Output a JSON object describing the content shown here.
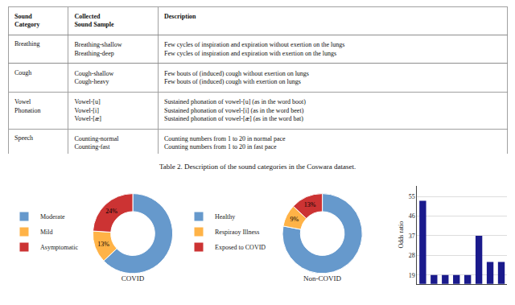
{
  "chart_data": [
    {
      "type": "table",
      "title": "Table 2. Description of the sound categories in the Coswara dataset.",
      "columns": [
        "Sound\nCategory",
        "Collected\nSound Sample",
        "Description"
      ],
      "rows": [
        [
          "Breathing",
          "Breathing-shallow\nBreathing-deep",
          "Few cycles of inspiration and expiration without exertion on the lungs\nFew cycles of inspiration and expiration with exertion on the lungs"
        ],
        [
          "Cough",
          "Cough-shallow\nCough-heavy",
          "Few bouts of (induced) cough without exertion on lungs\nFew bouts of (induced) cough with exertion on lungs"
        ],
        [
          "Vowel\nPhonation",
          "Vowel-[u]\nVowel-[i]\nVowel-[æ]",
          "Sustained phonation of vowel-[u] (as in the word boot)\nSustained phonation of vowel-[i] (as in the word beet)\nSustained phonation of vowel-[æ] (as in the word bat)"
        ],
        [
          "Speech",
          "Counting-normal\nCounting-fast",
          "Counting numbers from 1 to 20 in normal pace\nCounting numbers from 1 to 20 in fast pace"
        ]
      ]
    },
    {
      "type": "pie",
      "title": "COVID",
      "categories": [
        "Moderate",
        "Mild",
        "Asymptomatic"
      ],
      "values": [
        63,
        13,
        24
      ],
      "value_labels": [
        null,
        "13%",
        "24%"
      ],
      "data_labels": true,
      "colors": [
        "#6699CC",
        "#FFB347",
        "#CC3333"
      ],
      "legend": "left"
    },
    {
      "type": "pie",
      "title": "Non-COVID",
      "categories": [
        "Healthy",
        "Respiraoy Illness",
        "Exposed to COVID"
      ],
      "values": [
        78,
        9,
        13
      ],
      "value_labels": [
        null,
        "9%",
        "13%"
      ],
      "data_labels": true,
      "colors": [
        "#6699CC",
        "#FFB347",
        "#CC3333"
      ],
      "legend": "left"
    },
    {
      "type": "bar",
      "categories": [
        null,
        null,
        null,
        null,
        null,
        null,
        null,
        null
      ],
      "values": [
        53,
        19,
        19,
        19,
        19,
        37,
        25,
        25
      ],
      "color": "#1A1A8C",
      "ylabel": "Odds ratio",
      "ylim": [
        15,
        60
      ],
      "yticks": [
        19,
        28,
        37,
        46,
        55
      ],
      "grid": true,
      "tick_labels": "y"
    }
  ]
}
